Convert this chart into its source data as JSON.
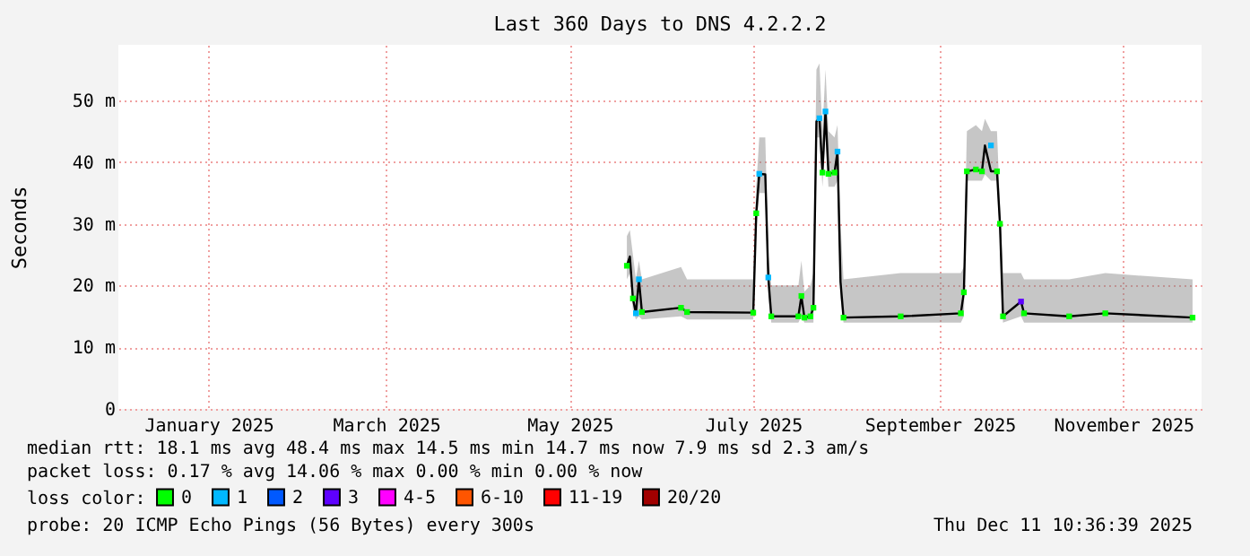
{
  "chart_data": {
    "type": "line",
    "title": "Last 360 Days to DNS 4.2.2.2",
    "ylabel": "Seconds",
    "xlim": [
      "2024-12-16",
      "2025-12-11"
    ],
    "xticks": [
      {
        "value": "2025-01-15",
        "label": "January 2025"
      },
      {
        "value": "2025-03-15",
        "label": "March 2025"
      },
      {
        "value": "2025-05-15",
        "label": "May 2025"
      },
      {
        "value": "2025-07-15",
        "label": "July 2025"
      },
      {
        "value": "2025-09-15",
        "label": "September 2025"
      },
      {
        "value": "2025-11-15",
        "label": "November 2025"
      }
    ],
    "ylim": [
      0,
      59
    ],
    "yticks": [
      {
        "value": 0,
        "label": "0"
      },
      {
        "value": 10,
        "label": "10 m"
      },
      {
        "value": 20,
        "label": "20 m"
      },
      {
        "value": 30,
        "label": "30 m"
      },
      {
        "value": 40,
        "label": "40 m"
      },
      {
        "value": 50,
        "label": "50 m"
      }
    ],
    "grid": true,
    "legend": "bottom left",
    "legend_title": "loss color:",
    "series": [
      {
        "color": "#000000",
        "x": [
          "2025-06-03",
          "2025-06-04",
          "2025-06-05",
          "2025-06-06",
          "2025-06-07",
          "2025-06-08",
          "2025-06-21",
          "2025-06-23",
          "2025-07-15",
          "2025-07-16",
          "2025-07-17",
          "2025-07-19",
          "2025-07-20",
          "2025-07-21",
          "2025-07-30",
          "2025-07-31",
          "2025-08-01",
          "2025-08-03",
          "2025-08-04",
          "2025-08-05",
          "2025-08-06",
          "2025-08-07",
          "2025-08-08",
          "2025-08-09",
          "2025-08-11",
          "2025-08-12",
          "2025-08-13",
          "2025-08-14",
          "2025-09-02",
          "2025-09-22",
          "2025-09-23",
          "2025-09-24",
          "2025-09-27",
          "2025-09-29",
          "2025-09-30",
          "2025-10-02",
          "2025-10-04",
          "2025-10-05",
          "2025-10-06",
          "2025-10-12",
          "2025-10-13",
          "2025-10-28",
          "2025-11-09",
          "2025-12-08"
        ],
        "values": [
          23.2,
          24.7,
          17.9,
          15.5,
          21,
          15.7,
          16.4,
          15.7,
          15.6,
          31.7,
          38.1,
          38,
          21.3,
          15,
          15,
          18.3,
          14.8,
          15,
          16.4,
          46.6,
          47.1,
          38.3,
          48.2,
          38.1,
          38.3,
          41.7,
          20.6,
          14.8,
          15,
          15.5,
          18.9,
          38.5,
          38.8,
          38.5,
          42.7,
          38.5,
          38.5,
          30,
          15,
          17.4,
          15.5,
          15,
          15.5,
          14.8
        ],
        "upper": [
          28,
          29,
          25,
          21,
          24,
          21,
          23,
          21,
          21,
          36,
          44,
          44,
          25,
          20,
          20,
          24,
          19,
          20,
          22,
          55,
          56,
          45,
          55,
          45,
          44,
          46,
          30,
          21,
          22,
          22,
          23,
          45,
          46,
          45,
          47,
          45,
          45,
          33,
          22,
          22,
          21,
          21,
          22,
          21
        ],
        "lower": [
          21,
          22,
          16,
          14.5,
          15,
          14.5,
          15,
          14.5,
          14.5,
          29,
          35,
          35,
          18,
          14,
          14,
          15,
          14,
          14,
          14,
          44,
          44,
          36,
          44,
          36,
          36,
          37,
          18,
          14,
          14,
          14,
          15,
          37,
          37,
          37,
          38,
          37,
          37,
          27,
          14,
          15,
          14,
          14,
          14,
          14
        ]
      },
      {
        "type": "scatter",
        "name": "0",
        "color": "#00ff00",
        "x": [
          "2025-06-03",
          "2025-06-05",
          "2025-06-08",
          "2025-06-21",
          "2025-06-23",
          "2025-07-15",
          "2025-07-16",
          "2025-07-21",
          "2025-07-30",
          "2025-07-31",
          "2025-08-01",
          "2025-08-03",
          "2025-08-04",
          "2025-08-07",
          "2025-08-09",
          "2025-08-11",
          "2025-08-14",
          "2025-09-02",
          "2025-09-22",
          "2025-09-23",
          "2025-09-24",
          "2025-09-27",
          "2025-09-29",
          "2025-10-04",
          "2025-10-05",
          "2025-10-06",
          "2025-10-13",
          "2025-10-28",
          "2025-11-09",
          "2025-12-08"
        ],
        "values": [
          23.2,
          17.9,
          15.7,
          16.4,
          15.7,
          15.6,
          31.7,
          15,
          15,
          18.3,
          14.8,
          15,
          16.4,
          38.3,
          38.1,
          38.3,
          14.8,
          15,
          15.5,
          18.9,
          38.5,
          38.8,
          38.5,
          38.5,
          30,
          15,
          15.5,
          15,
          15.5,
          14.8
        ]
      },
      {
        "type": "scatter",
        "name": "1",
        "color": "#00b8ff",
        "x": [
          "2025-06-06",
          "2025-06-07",
          "2025-07-17",
          "2025-07-20",
          "2025-08-06",
          "2025-08-08",
          "2025-08-12",
          "2025-10-02"
        ],
        "values": [
          15.5,
          21,
          38.1,
          21.3,
          47.1,
          48.2,
          41.7,
          42.7
        ]
      },
      {
        "type": "scatter",
        "name": "2",
        "color": "#0059ff"
      },
      {
        "type": "scatter",
        "name": "3",
        "color": "#5e00ff",
        "x": [
          "2025-10-12"
        ],
        "values": [
          17.4
        ]
      },
      {
        "type": "scatter",
        "name": "4-5",
        "color": "#ff00ff"
      },
      {
        "type": "scatter",
        "name": "6-10",
        "color": "#ff5500"
      },
      {
        "type": "scatter",
        "name": "11-19",
        "color": "#ff0000"
      },
      {
        "type": "scatter",
        "name": "20/20",
        "color": "#a10000"
      }
    ],
    "annotations": [
      "median rtt:  18.1 ms avg  48.4 ms max  14.5 ms min  14.7 ms now  7.9 ms sd  2.3   am/s",
      "packet loss: 0.17 % avg  14.06 % max  0.00 % min  0.00 % now",
      "probe:       20 ICMP Echo Pings (56 Bytes) every 300s",
      "Thu Dec 11 10:36:39 2025"
    ]
  }
}
